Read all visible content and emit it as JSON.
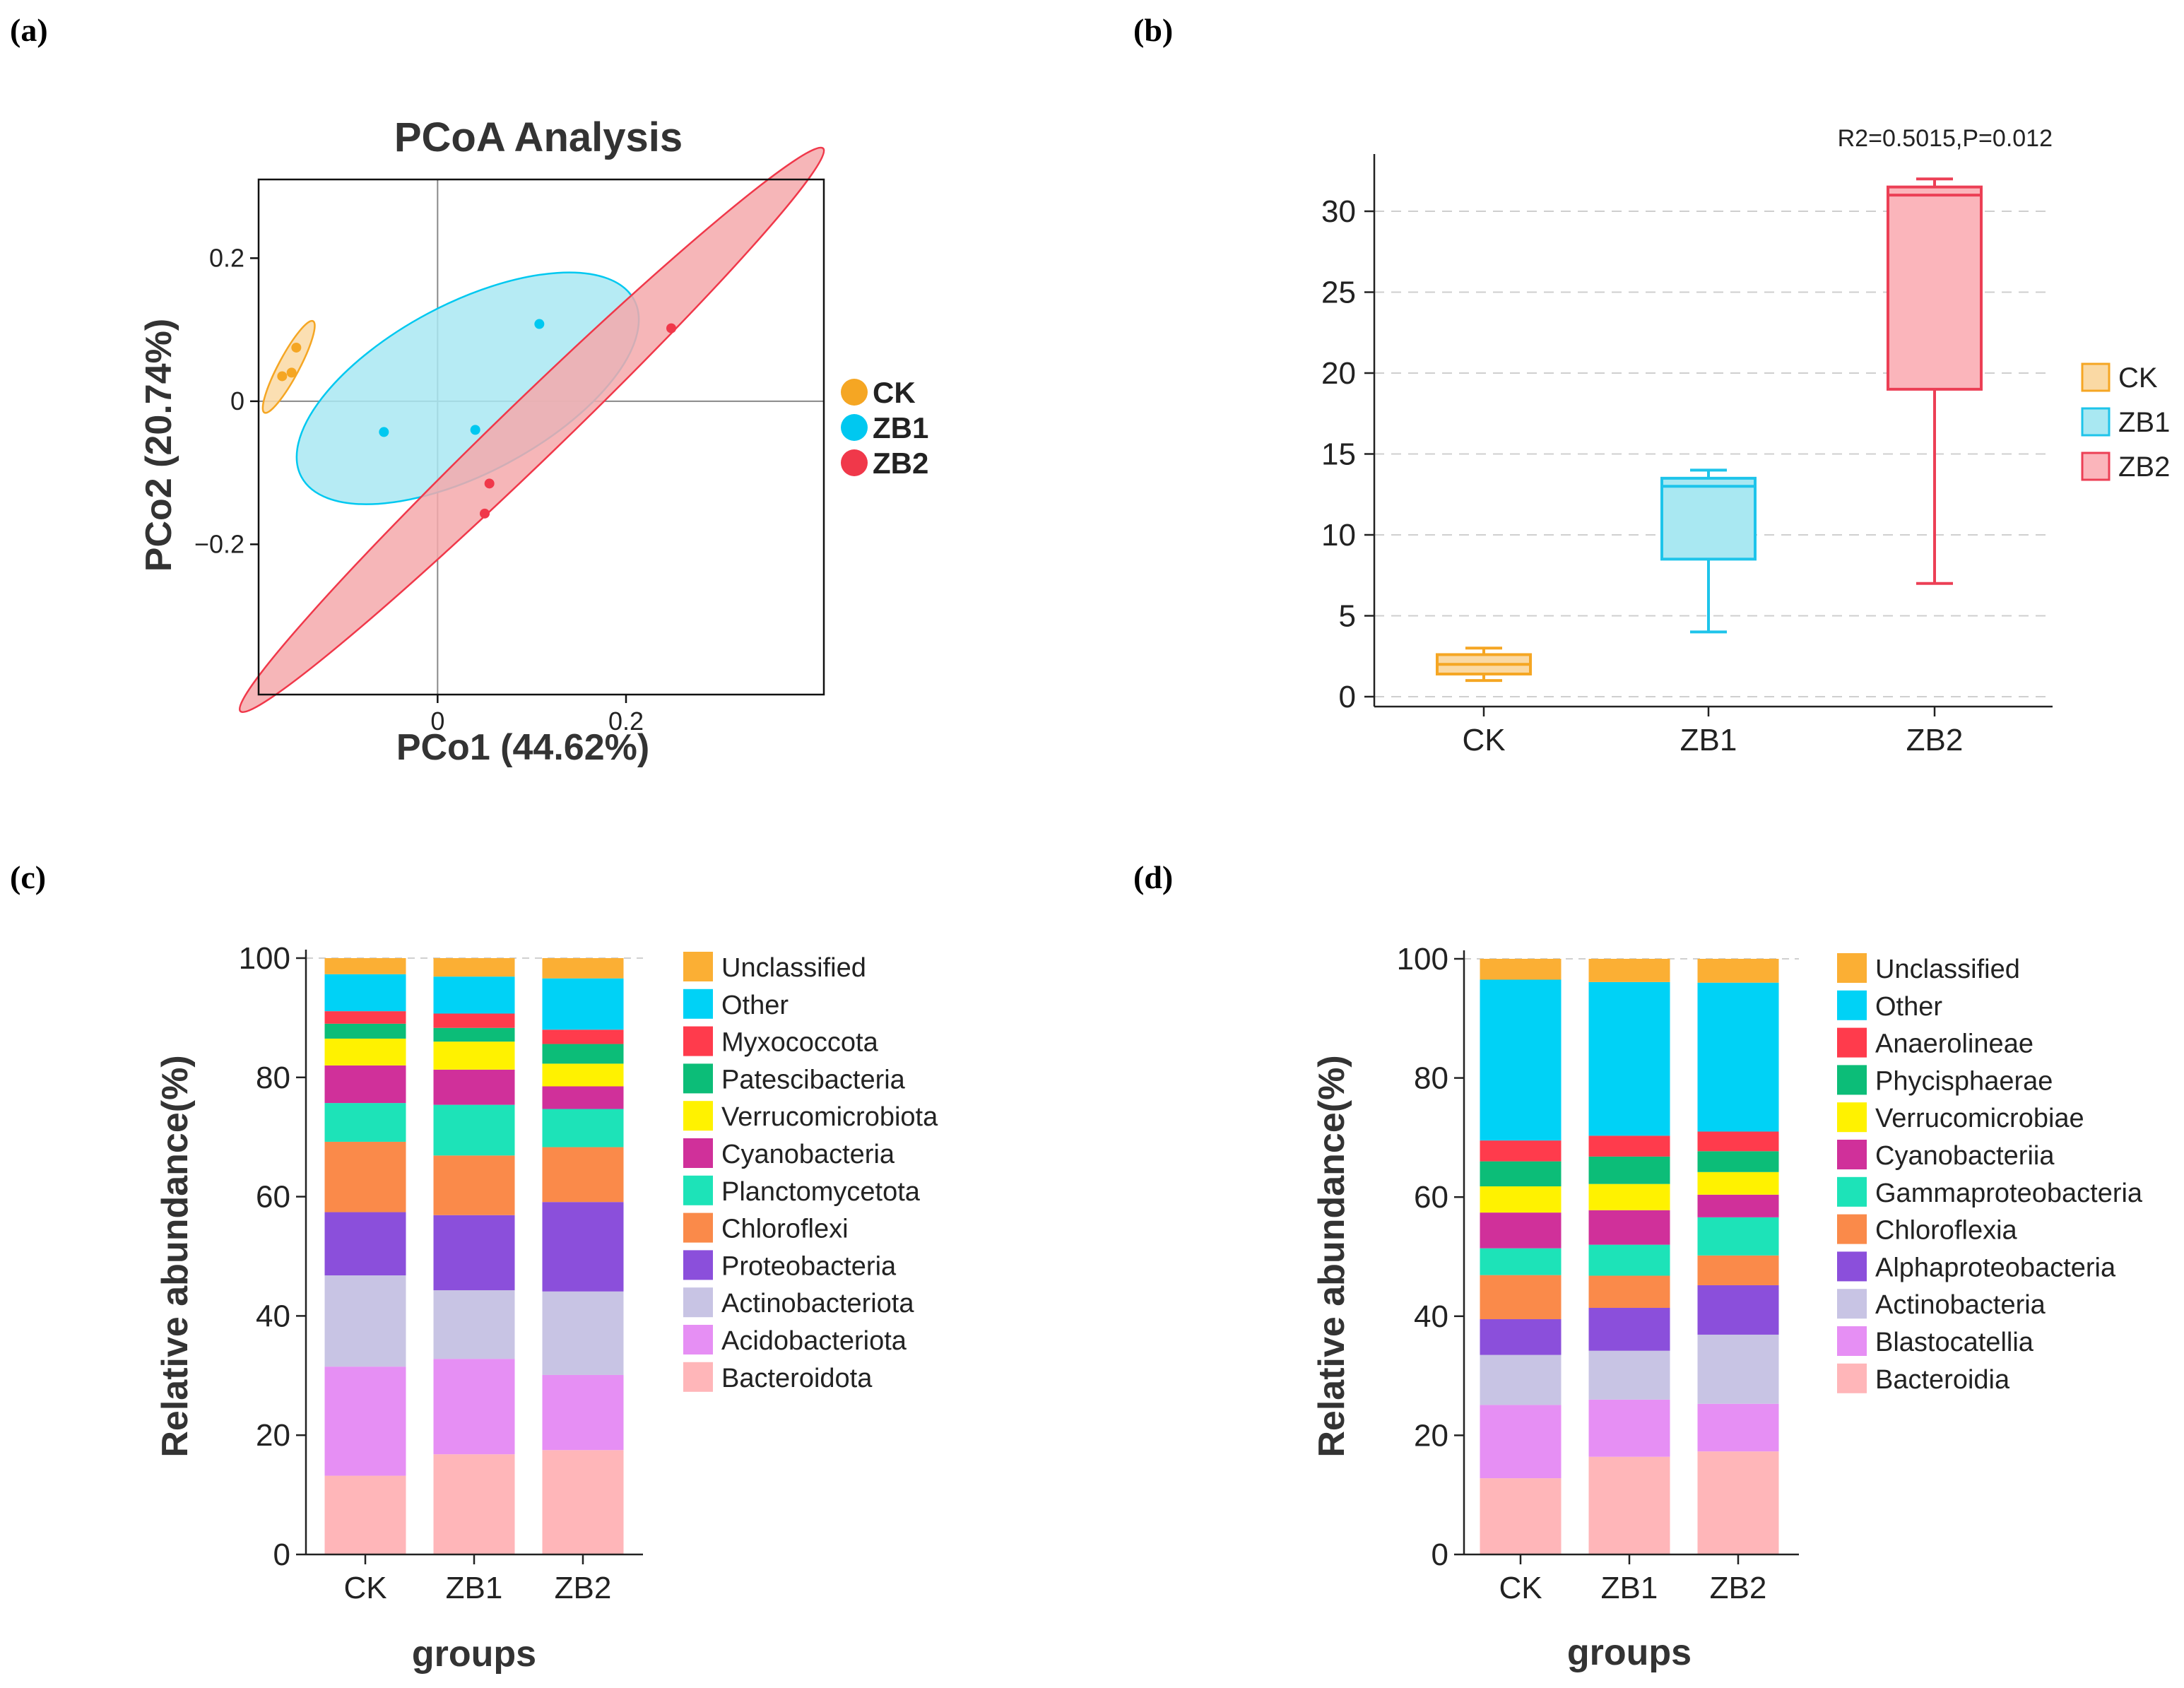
{
  "panel_labels": {
    "a": "(a)",
    "b": "(b)",
    "c": "(c)",
    "d": "(d)"
  },
  "chart_data": [
    {
      "panel": "a",
      "type": "scatter",
      "title": "PCoA Analysis",
      "xlabel": "PCo1 (44.62%)",
      "ylabel": "PCo2 (20.74%)",
      "xlim": [
        -0.19,
        0.41
      ],
      "ylim": [
        -0.41,
        0.31
      ],
      "x_ticks": [
        {
          "value": 0,
          "label": "0"
        },
        {
          "value": 0.2,
          "label": "0.2"
        }
      ],
      "y_ticks": [
        {
          "value": 0.2,
          "label": "0.2"
        },
        {
          "value": 0,
          "label": "0"
        },
        {
          "value": -0.2,
          "label": "−0.2"
        }
      ],
      "grid": false,
      "legend_position": "right",
      "series": [
        {
          "name": "CK",
          "color": "#F5A623",
          "fill": "#FAD9A4",
          "points": [
            {
              "x": -0.165,
              "y": 0.035
            },
            {
              "x": -0.155,
              "y": 0.04
            },
            {
              "x": -0.15,
              "y": 0.075
            }
          ],
          "ellipse": {
            "cx": -0.158,
            "cy": 0.048,
            "rx": 0.055,
            "ry": 0.011,
            "angle_deg": 62
          }
        },
        {
          "name": "ZB1",
          "color": "#00C8F0",
          "fill": "#A9E8F2",
          "points": [
            {
              "x": -0.057,
              "y": -0.043
            },
            {
              "x": 0.04,
              "y": -0.04
            },
            {
              "x": 0.108,
              "y": 0.108
            }
          ],
          "ellipse": {
            "cx": 0.032,
            "cy": 0.018,
            "rx": 0.2,
            "ry": 0.09,
            "angle_deg": 28
          }
        },
        {
          "name": "ZB2",
          "color": "#F0384A",
          "fill": "#F4A9AC",
          "points": [
            {
              "x": 0.055,
              "y": -0.115
            },
            {
              "x": 0.05,
              "y": -0.157
            },
            {
              "x": 0.248,
              "y": 0.102
            }
          ],
          "ellipse": {
            "cx": 0.1,
            "cy": -0.04,
            "rx": 0.43,
            "ry": 0.032,
            "angle_deg": 44
          }
        }
      ]
    },
    {
      "panel": "b",
      "type": "box",
      "annotation": "R2=0.5015,P=0.012",
      "categories": [
        "CK",
        "ZB1",
        "ZB2"
      ],
      "ylim": [
        0,
        33
      ],
      "y_ticks": [
        0,
        5,
        10,
        15,
        20,
        25,
        30
      ],
      "grid": true,
      "legend_position": "right",
      "boxes": [
        {
          "name": "CK",
          "color": "#F5A623",
          "fill": "#FAD9A4",
          "min": 1.0,
          "q1": 1.4,
          "median": 2.0,
          "q3": 2.6,
          "max": 3.0
        },
        {
          "name": "ZB1",
          "color": "#1EC4EA",
          "fill": "#A9E8F2",
          "min": 4.0,
          "q1": 8.5,
          "median": 13.0,
          "q3": 13.5,
          "max": 14.0
        },
        {
          "name": "ZB2",
          "color": "#EC3F55",
          "fill": "#FBB5BB",
          "min": 7.0,
          "q1": 19.0,
          "median": 31.0,
          "q3": 31.5,
          "max": 32.0
        }
      ]
    },
    {
      "panel": "c",
      "type": "stacked_bar",
      "xlabel": "groups",
      "ylabel": "Relative abundance(%)",
      "ylim": [
        0,
        100
      ],
      "y_ticks": [
        0,
        20,
        40,
        60,
        80,
        100
      ],
      "categories": [
        "CK",
        "ZB1",
        "ZB2"
      ],
      "legend_position": "right",
      "series": [
        {
          "name": "Bacteroidota",
          "color": "#FFB6B9",
          "values": [
            13.2,
            16.8,
            17.5
          ]
        },
        {
          "name": "Acidobacteriota",
          "color": "#E68FF4",
          "values": [
            18.3,
            16.0,
            12.6
          ]
        },
        {
          "name": "Actinobacteriota",
          "color": "#C8C4E4",
          "values": [
            15.3,
            11.5,
            14.0
          ]
        },
        {
          "name": "Proteobacteria",
          "color": "#8B4FDB",
          "values": [
            10.6,
            12.6,
            15.0
          ]
        },
        {
          "name": "Chloroflexi",
          "color": "#FA8A4A",
          "values": [
            11.8,
            10.0,
            9.2
          ]
        },
        {
          "name": "Planctomycetota",
          "color": "#1DE3B8",
          "values": [
            6.5,
            8.5,
            6.4
          ]
        },
        {
          "name": "Cyanobacteria",
          "color": "#D0309A",
          "values": [
            6.3,
            5.9,
            3.8
          ]
        },
        {
          "name": "Verrucomicrobiota",
          "color": "#FFF200",
          "values": [
            4.5,
            4.7,
            3.8
          ]
        },
        {
          "name": "Patescibacteria",
          "color": "#0CBD78",
          "values": [
            2.5,
            2.3,
            3.3
          ]
        },
        {
          "name": "Myxococcota",
          "color": "#FF3B4C",
          "values": [
            2.1,
            2.4,
            2.4
          ]
        },
        {
          "name": "Other",
          "color": "#00D2F6",
          "values": [
            6.2,
            6.2,
            8.6
          ]
        },
        {
          "name": "Unclassified",
          "color": "#FBAF34",
          "values": [
            2.7,
            3.1,
            3.4
          ]
        }
      ]
    },
    {
      "panel": "d",
      "type": "stacked_bar",
      "xlabel": "groups",
      "ylabel": "Relative abundance(%)",
      "ylim": [
        0,
        100
      ],
      "y_ticks": [
        0,
        20,
        40,
        60,
        80,
        100
      ],
      "categories": [
        "CK",
        "ZB1",
        "ZB2"
      ],
      "legend_position": "right",
      "series": [
        {
          "name": "Bacteroidia",
          "color": "#FFB6B9",
          "values": [
            12.8,
            16.4,
            17.3
          ]
        },
        {
          "name": "Blastocatellia",
          "color": "#E68FF4",
          "values": [
            12.3,
            9.6,
            8.0
          ]
        },
        {
          "name": "Actinobacteria",
          "color": "#C8C4E4",
          "values": [
            8.4,
            8.2,
            11.6
          ]
        },
        {
          "name": "Alphaproteobacteria",
          "color": "#8B4FDB",
          "values": [
            6.0,
            7.2,
            8.3
          ]
        },
        {
          "name": "Chloroflexia",
          "color": "#FA8A4A",
          "values": [
            7.4,
            5.4,
            5.0
          ]
        },
        {
          "name": "Gammaproteobacteria",
          "color": "#1DE3B8",
          "values": [
            4.5,
            5.2,
            6.4
          ]
        },
        {
          "name": "Cyanobacteriia",
          "color": "#D0309A",
          "values": [
            6.0,
            5.8,
            3.8
          ]
        },
        {
          "name": "Verrucomicrobiae",
          "color": "#FFF200",
          "values": [
            4.4,
            4.4,
            3.8
          ]
        },
        {
          "name": "Phycisphaerae",
          "color": "#0CBD78",
          "values": [
            4.2,
            4.6,
            3.5
          ]
        },
        {
          "name": "Anaerolineae",
          "color": "#FF3B4C",
          "values": [
            3.5,
            3.5,
            3.3
          ]
        },
        {
          "name": "Other",
          "color": "#00D2F6",
          "values": [
            27.0,
            25.8,
            25.0
          ]
        },
        {
          "name": "Unclassified",
          "color": "#FBAF34",
          "values": [
            3.5,
            3.9,
            4.0
          ]
        }
      ]
    }
  ]
}
